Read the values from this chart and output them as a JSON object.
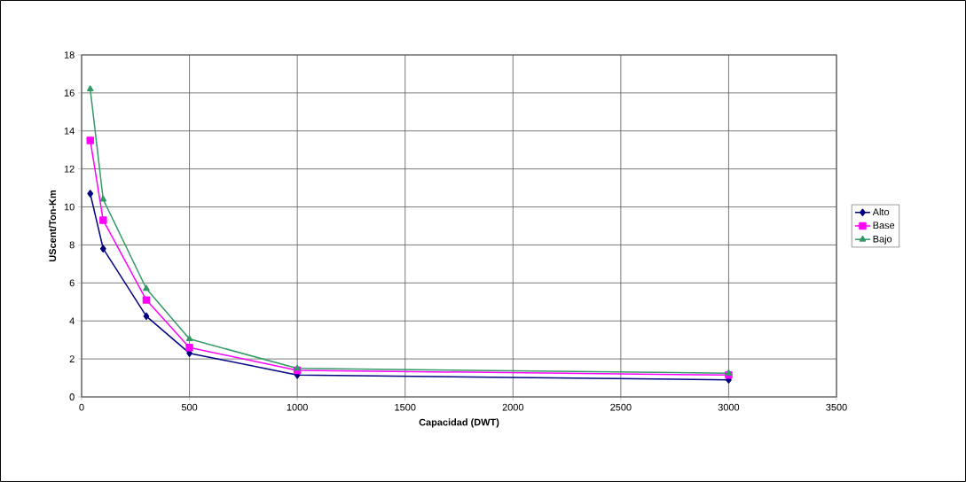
{
  "chart_data": {
    "type": "line",
    "xlabel": "Capacidad (DWT)",
    "ylabel": "UScent/Ton-Km",
    "x": [
      40,
      100,
      300,
      500,
      1000,
      3000
    ],
    "series": [
      {
        "name": "Alto",
        "color": "#000080",
        "marker": "diamond",
        "values": [
          10.7,
          7.8,
          4.25,
          2.3,
          1.15,
          0.9
        ]
      },
      {
        "name": "Base",
        "color": "#ff00ff",
        "marker": "square",
        "values": [
          13.5,
          9.3,
          5.1,
          2.6,
          1.4,
          1.15
        ]
      },
      {
        "name": "Bajo",
        "color": "#339966",
        "marker": "triangle",
        "values": [
          16.2,
          10.4,
          5.7,
          3.05,
          1.5,
          1.25
        ]
      }
    ],
    "xlim": [
      0,
      3500
    ],
    "xticks": [
      0,
      500,
      1000,
      1500,
      2000,
      2500,
      3000,
      3500
    ],
    "ylim": [
      0,
      18
    ],
    "yticks": [
      0,
      2,
      4,
      6,
      8,
      10,
      12,
      14,
      16,
      18
    ],
    "grid": true,
    "legend": "right"
  }
}
